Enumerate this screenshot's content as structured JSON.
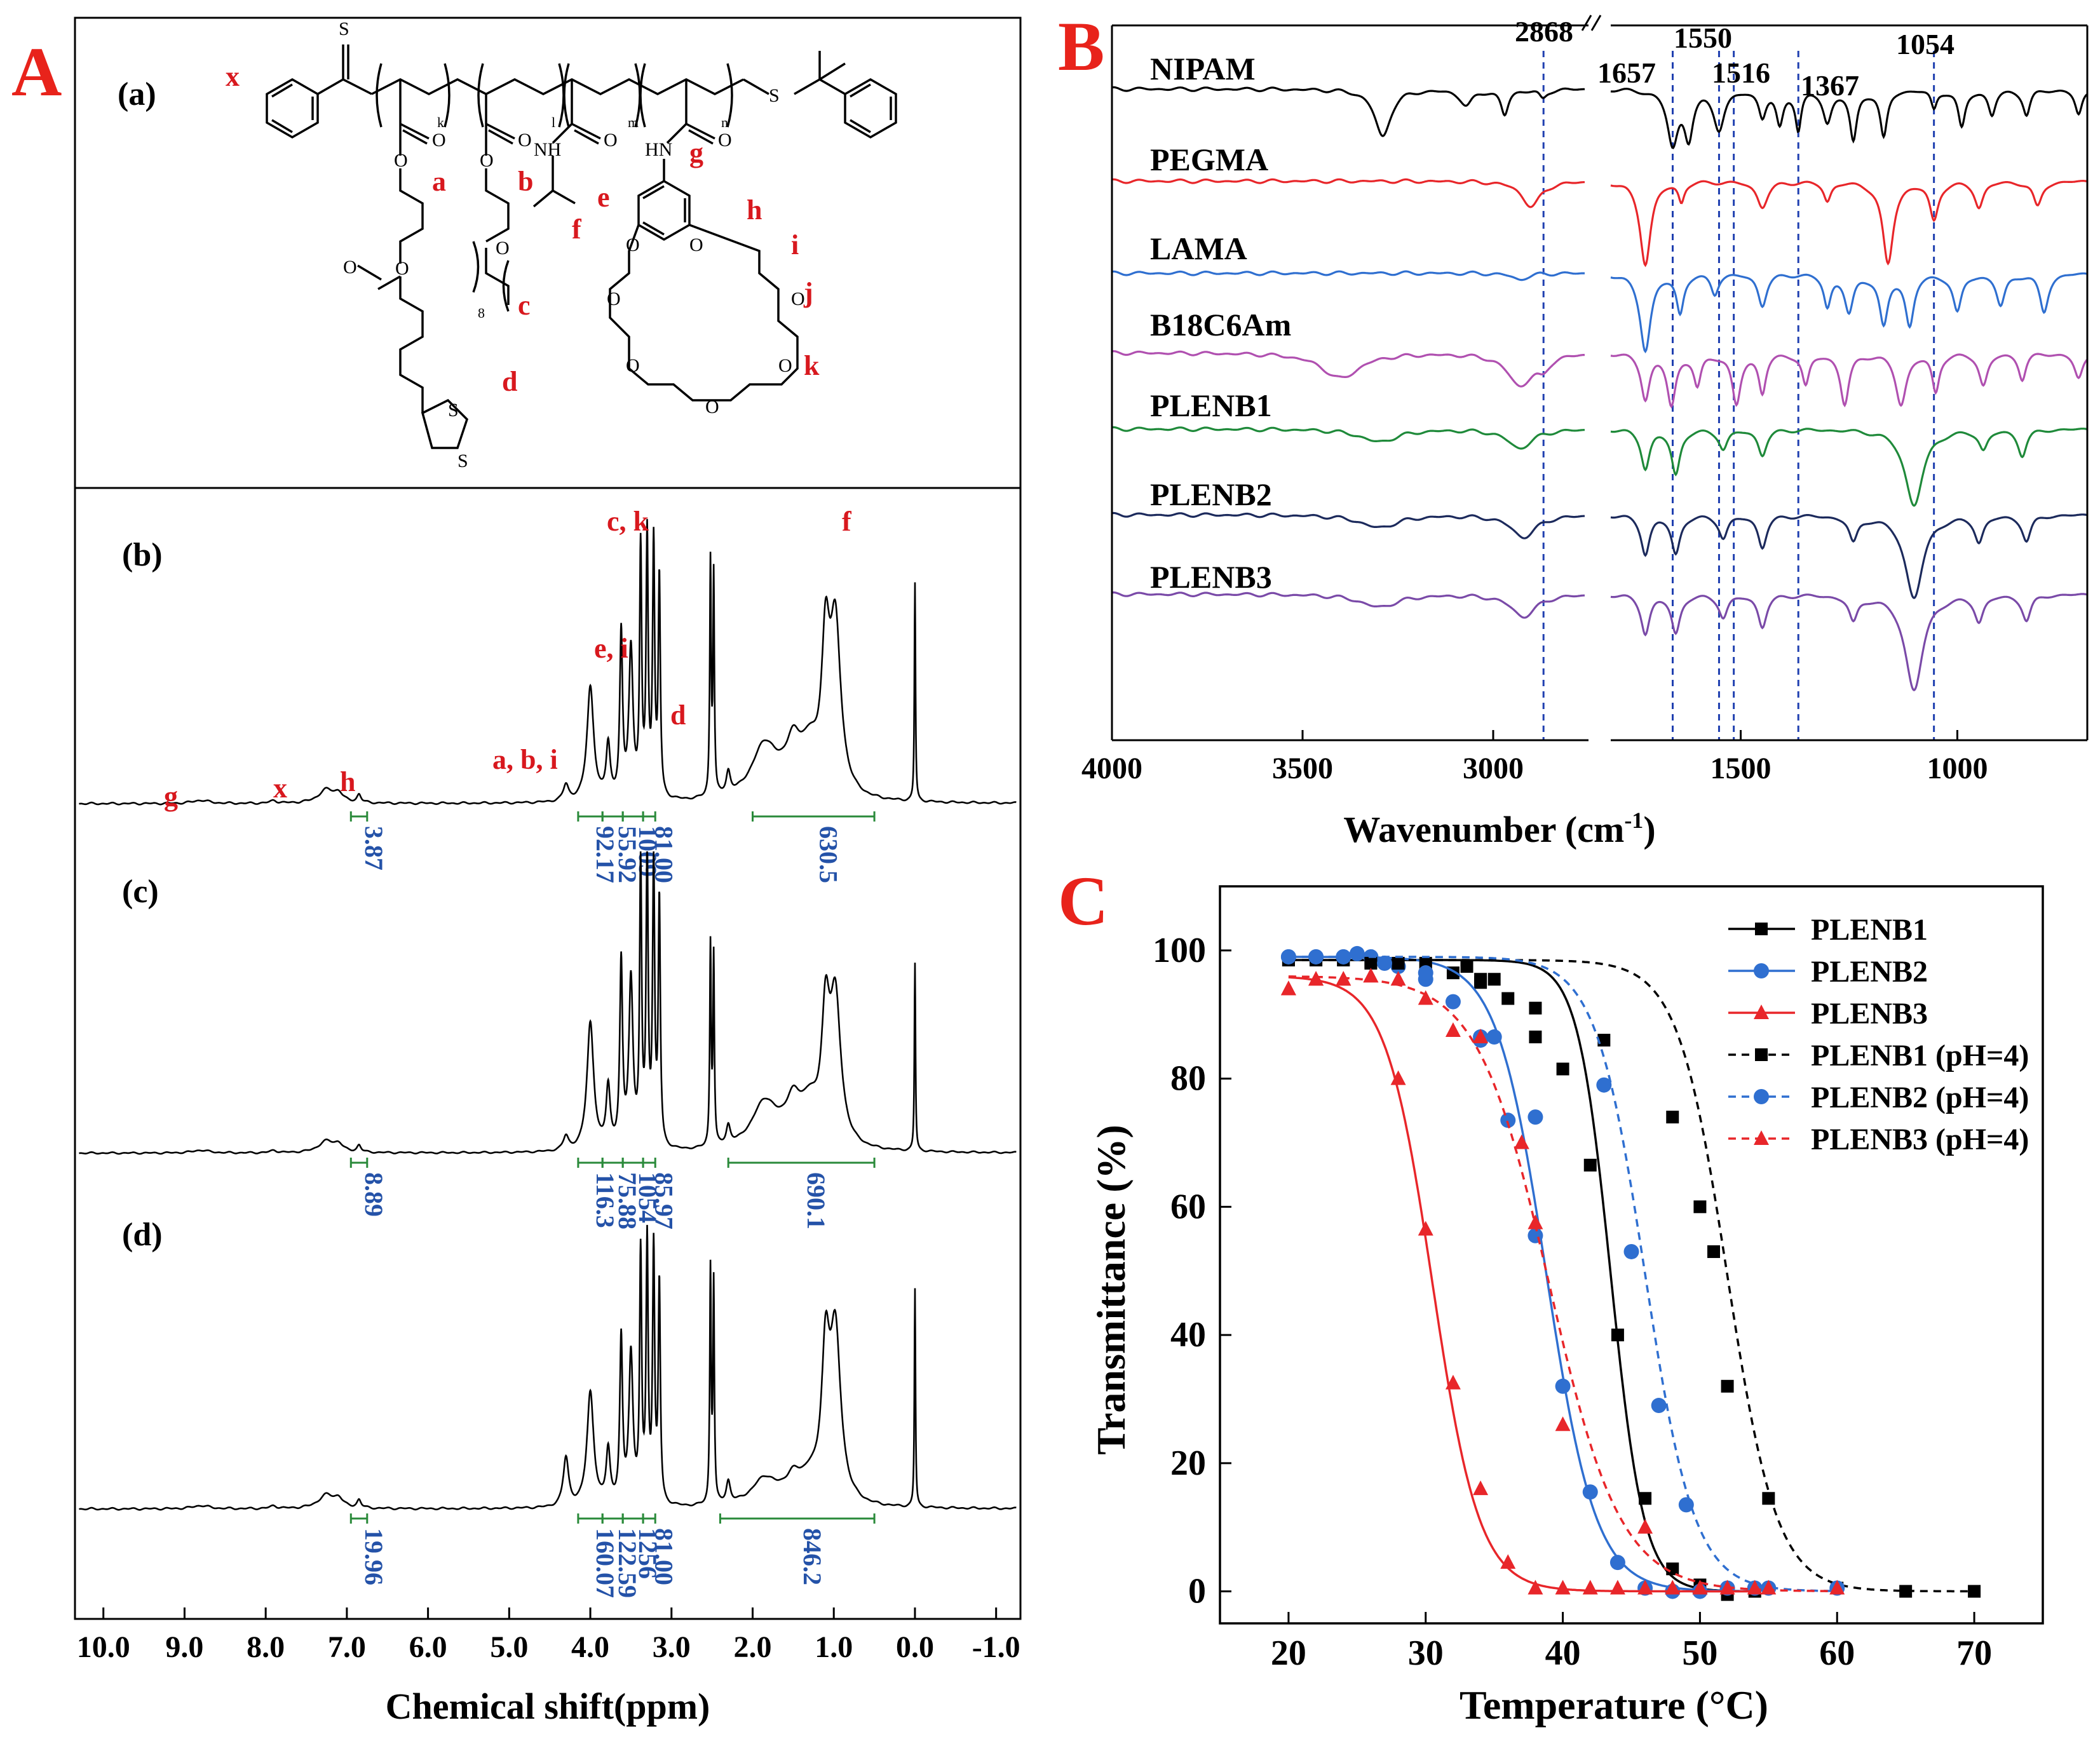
{
  "figure": {
    "panel_letters": [
      "A",
      "B",
      "C"
    ],
    "colors": {
      "accent_red": "#e8231b",
      "label_red": "#d8181e",
      "integral_green": "#2a8a3a",
      "integral_blue": "#2452a8",
      "series_black": "#000000",
      "series_blue": "#2f6fd0",
      "series_red": "#e8262a",
      "series_purple": "#7a4aa8",
      "series_magenta": "#b050b0",
      "series_green": "#1f8a3a",
      "series_navy": "#1c2a5c"
    }
  },
  "panel_a": {
    "sub_a_label": "(a)",
    "structure_labels": [
      "x",
      "a",
      "b",
      "c",
      "d",
      "e",
      "f",
      "g",
      "h",
      "i",
      "j",
      "k"
    ],
    "atom_labels": {
      "S1": "S",
      "S2": "S",
      "S3": "S",
      "S4": "S",
      "O_list": "O",
      "NH": "NH",
      "HN": "HN",
      "subs": [
        "k",
        "l",
        "m",
        "n"
      ],
      "n8": "8"
    },
    "spectra": [
      {
        "label": "(b)",
        "peak_labels": [
          "g",
          "x",
          "h",
          "a, b, i",
          "e, i",
          "c, k",
          "d",
          "f"
        ],
        "integrals": [
          "3.87",
          "92.17",
          "55.92",
          "1009",
          "81.00",
          "630.5"
        ]
      },
      {
        "label": "(c)",
        "peak_labels": [],
        "integrals": [
          "8.89",
          "116.3",
          "75.88",
          "1054",
          "85.97",
          "690.1"
        ]
      },
      {
        "label": "(d)",
        "peak_labels": [],
        "integrals": [
          "19.96",
          "160.07",
          "122.59",
          "1256",
          "81.00",
          "846.2"
        ]
      }
    ],
    "x_axis": {
      "label": "Chemical shift(ppm)",
      "ticks": [
        "10.0",
        "9.0",
        "8.0",
        "7.0",
        "6.0",
        "5.0",
        "4.0",
        "3.0",
        "2.0",
        "1.0",
        "0.0",
        "-1.0"
      ],
      "range": [
        10.0,
        -1.0
      ]
    }
  },
  "panel_b": {
    "series_names": [
      "NIPAM",
      "PEGMA",
      "LAMA",
      "B18C6Am",
      "PLENB1",
      "PLENB2",
      "PLENB3"
    ],
    "marker_labels": [
      "2868",
      "1657",
      "1550",
      "1516",
      "1367",
      "1054"
    ],
    "marker_values": [
      2868,
      1657,
      1550,
      1516,
      1367,
      1054
    ],
    "x_axis": {
      "label": "Wavenumber (cm",
      "label_sup": "-1",
      "label_end": ")",
      "ticks": [
        "4000",
        "3500",
        "3000",
        "1500",
        "1000"
      ],
      "tick_values": [
        4000,
        3500,
        3000,
        1500,
        1000
      ],
      "break_between": [
        2750,
        1800
      ]
    }
  },
  "chart_data": {
    "type": "scatter",
    "title": "",
    "xlabel": "Temperature (°C)",
    "ylabel": "Transmittance (%)",
    "xlim": [
      15,
      75
    ],
    "ylim": [
      -5,
      110
    ],
    "x_ticks": [
      "20",
      "30",
      "40",
      "50",
      "60",
      "70"
    ],
    "x_tick_values": [
      20,
      30,
      40,
      50,
      60,
      70
    ],
    "y_ticks": [
      "0",
      "20",
      "40",
      "60",
      "80",
      "100"
    ],
    "y_tick_values": [
      0,
      20,
      40,
      60,
      80,
      100
    ],
    "legend_position": "top-right",
    "series": [
      {
        "name": "PLENB1",
        "marker": "square",
        "style": "solid",
        "color": "#000000",
        "x": [
          20,
          22,
          24,
          26,
          28,
          30,
          32,
          34,
          36,
          38,
          40,
          42,
          44,
          46,
          48,
          50,
          52,
          54
        ],
        "y": [
          98.5,
          98.5,
          98.5,
          98.2,
          98.0,
          97.5,
          96.5,
          95.0,
          92.5,
          86.5,
          81.5,
          66.5,
          40.0,
          14.5,
          3.5,
          1.0,
          -0.5,
          0.0
        ],
        "fit": {
          "midpoint": 43.5,
          "width": 1.2,
          "top": 98.5
        }
      },
      {
        "name": "PLENB2",
        "marker": "circle",
        "style": "solid",
        "color": "#2f6fd0",
        "x": [
          20,
          22,
          24,
          26,
          28,
          30,
          32,
          34,
          35,
          36,
          38,
          40,
          42,
          44,
          46,
          48,
          50,
          52,
          54
        ],
        "y": [
          99.0,
          99.0,
          99.0,
          99.0,
          97.5,
          95.5,
          92.0,
          86.5,
          86.5,
          73.5,
          55.5,
          32.0,
          15.5,
          4.5,
          0.5,
          0.0,
          0.0,
          0.5,
          0.5
        ],
        "fit": {
          "midpoint": 38.8,
          "width": 1.8,
          "top": 99.0
        }
      },
      {
        "name": "PLENB3",
        "marker": "triangle",
        "style": "solid",
        "color": "#e8262a",
        "x": [
          20,
          22,
          24,
          26,
          28,
          30,
          32,
          34,
          36,
          38,
          40,
          42,
          44,
          46,
          48,
          50,
          52,
          54
        ],
        "y": [
          94.0,
          95.5,
          95.5,
          96.0,
          80.0,
          56.5,
          32.5,
          16.0,
          4.5,
          0.5,
          0.5,
          0.5,
          0.5,
          0.5,
          0.5,
          0.5,
          0.5,
          0.5
        ],
        "fit": {
          "midpoint": 30.5,
          "width": 1.7,
          "top": 96.0
        }
      },
      {
        "name": "PLENB1 (pH=4)",
        "marker": "square",
        "style": "dashed",
        "color": "#000000",
        "x": [
          20,
          22,
          24,
          26,
          28,
          30,
          33,
          34,
          35,
          38,
          43,
          48,
          50,
          51,
          52,
          55,
          60,
          65,
          70
        ],
        "y": [
          98.5,
          98.5,
          98.5,
          98.0,
          98.0,
          98.0,
          97.5,
          95.5,
          95.5,
          91.0,
          86.0,
          74.0,
          60.0,
          53.0,
          32.0,
          14.5,
          0.5,
          0.0,
          0.0
        ],
        "fit": {
          "midpoint": 52.0,
          "width": 1.8,
          "top": 98.5
        }
      },
      {
        "name": "PLENB2 (pH=4)",
        "marker": "circle",
        "style": "dashed",
        "color": "#2f6fd0",
        "x": [
          20,
          22,
          24,
          25,
          27,
          30,
          34,
          38,
          43,
          45,
          47,
          49,
          55,
          60
        ],
        "y": [
          99.0,
          99.0,
          99.0,
          99.5,
          98.0,
          96.5,
          86.0,
          74.0,
          79.0,
          53.0,
          29.0,
          13.5,
          0.5,
          0.5
        ],
        "fit": {
          "midpoint": 46.0,
          "width": 1.8,
          "top": 99.0
        }
      },
      {
        "name": "PLENB3 (pH=4)",
        "marker": "triangle",
        "style": "dashed",
        "color": "#e8262a",
        "x": [
          20,
          22,
          24,
          26,
          28,
          30,
          32,
          34,
          37,
          38,
          40,
          46,
          50,
          55,
          60
        ],
        "y": [
          94.0,
          95.5,
          95.5,
          96.0,
          95.5,
          92.5,
          87.5,
          86.5,
          70.0,
          57.5,
          26.0,
          10.0,
          0.5,
          0.5,
          0.5
        ],
        "fit": {
          "midpoint": 39.0,
          "width": 2.6,
          "top": 96.0
        }
      }
    ]
  }
}
